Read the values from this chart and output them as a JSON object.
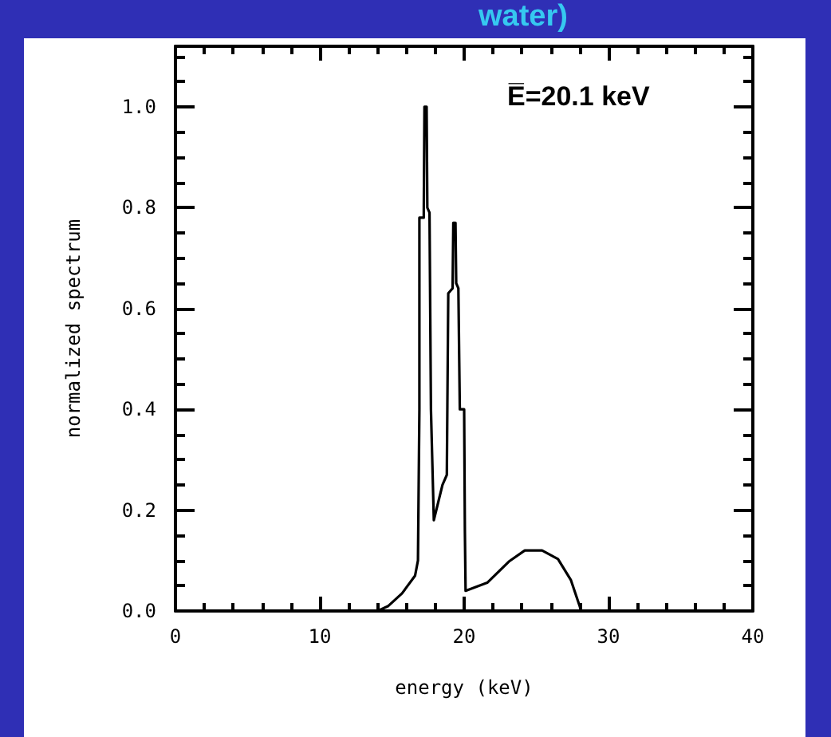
{
  "chart_data": {
    "type": "line",
    "title": "water)",
    "xlabel": "energy (keV)",
    "ylabel": "normalized spectrum",
    "annotations": [
      "E̅=20.1 keV"
    ],
    "x": [
      0,
      14,
      14.75,
      15.7,
      16.6,
      16.8,
      16.9,
      16.9,
      17.2,
      17.25,
      17.4,
      17.45,
      17.6,
      17.7,
      17.9,
      18.5,
      18.8,
      18.9,
      19.2,
      19.25,
      19.4,
      19.45,
      19.6,
      19.7,
      20.0,
      20.05,
      20.1,
      21.6,
      23.1,
      24.2,
      25.4,
      26.5,
      27.4,
      28.0,
      28.1,
      40
    ],
    "series": [
      {
        "color": "#000000",
        "values": [
          0,
          0,
          0.01,
          0.035,
          0.07,
          0.1,
          0.4,
          0.78,
          0.78,
          1.0,
          1.0,
          0.8,
          0.79,
          0.4,
          0.18,
          0.25,
          0.27,
          0.63,
          0.64,
          0.77,
          0.77,
          0.65,
          0.64,
          0.4,
          0.4,
          0.16,
          0.04,
          0.056,
          0.098,
          0.12,
          0.12,
          0.103,
          0.061,
          0.01,
          0,
          0
        ]
      }
    ],
    "xlim": [
      0,
      40
    ],
    "xticks": [
      0,
      10,
      20,
      30,
      40
    ],
    "ylim": [
      0,
      1.12
    ],
    "yticks": [
      {
        "value": 0,
        "label": "0.0"
      },
      0.2,
      0.4,
      0.6,
      0.8,
      {
        "value": 1,
        "label": "1.0"
      }
    ],
    "grid": false,
    "marker": "none",
    "line_style": "solid"
  }
}
